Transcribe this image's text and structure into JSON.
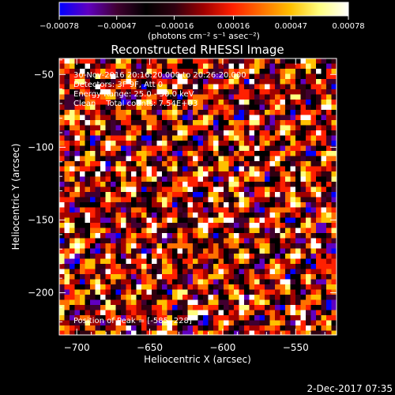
{
  "chart_data": {
    "type": "heatmap",
    "title": "Reconstructed RHESSI Image",
    "xlabel": "Heliocentric X (arcsec)",
    "ylabel": "Heliocentric Y (arcsec)",
    "xlim": [
      -712,
      -522
    ],
    "ylim": [
      -229,
      -39
    ],
    "x_ticks": [
      -700,
      -650,
      -600,
      -550
    ],
    "x_tick_labels": [
      "−700",
      "−650",
      "−600",
      "−550"
    ],
    "y_ticks": [
      -200,
      -150,
      -100,
      -50
    ],
    "y_tick_labels": [
      "−200",
      "−150",
      "−100",
      "−50"
    ],
    "colorbar": {
      "range": [
        -0.00078,
        0.00078
      ],
      "ticks": [
        -0.00078,
        -0.00047,
        -0.00016,
        0.00016,
        0.00047,
        0.00078
      ],
      "tick_labels": [
        "−0.00078",
        "−0.00047",
        "−0.00016",
        "0.00016",
        "0.00047",
        "0.00078"
      ],
      "unit_label": "(photons cm⁻² s⁻¹ asec⁻²)",
      "colors": [
        "#0000ff",
        "#6000c0",
        "#400030",
        "#000000",
        "#300010",
        "#a00000",
        "#ff2000",
        "#ff7000",
        "#ffc000",
        "#ffff80",
        "#ffffff"
      ]
    },
    "annotations": [
      "30-Nov-2016 20:16:20.000 to 20:26:20.000",
      "Detectors: 3F 9F, Att 0",
      "Energy Range: 25.0 - 50.0 keV",
      "Clean    Total counts: 7.54E+03"
    ],
    "peak_label": "Position of Peak = [-585,-228]",
    "grid": false
  },
  "footer": {
    "timestamp": "2-Dec-2017 07:35"
  }
}
